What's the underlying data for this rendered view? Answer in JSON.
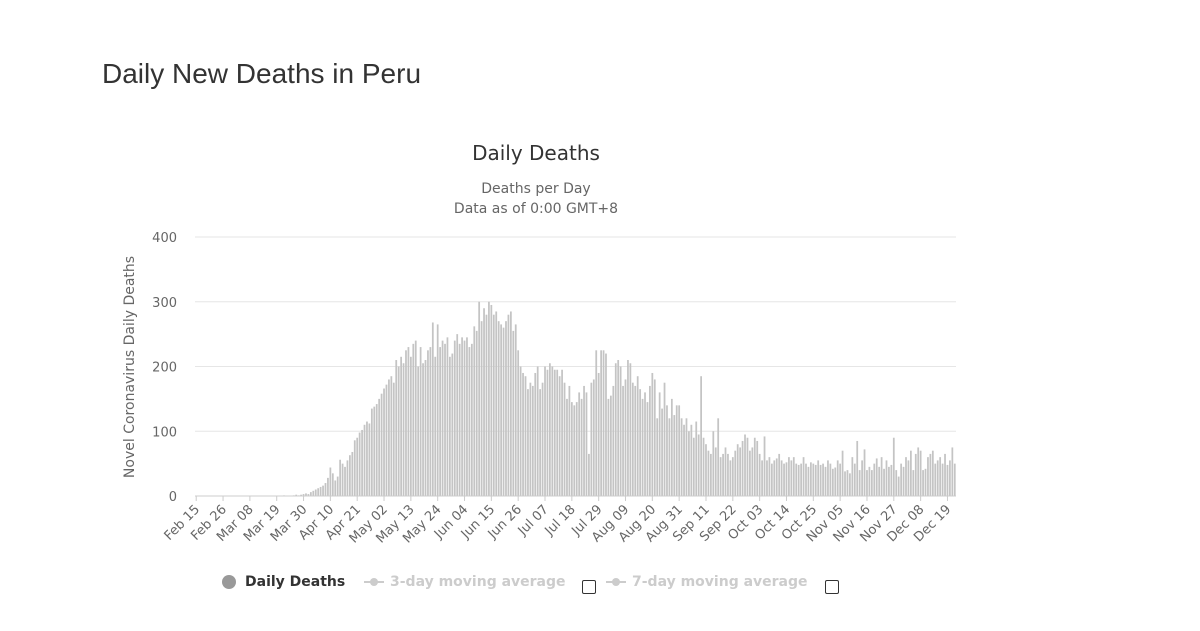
{
  "page": {
    "title": "Daily New Deaths in Peru"
  },
  "legend": {
    "items": [
      {
        "label": "Daily Deaths",
        "active": true
      },
      {
        "label": "3-day moving average",
        "active": false
      },
      {
        "label": "7-day moving average",
        "active": false
      }
    ],
    "checkbox_checked": [
      false,
      false
    ]
  },
  "colors": {
    "bar": "#c4c4c4",
    "bar_stroke": "#ffffff",
    "grid": "#e6e6e6",
    "text": "#666666",
    "title": "#333333"
  },
  "chart_data": {
    "type": "bar",
    "title": "Daily Deaths",
    "subtitle": [
      "Deaths per Day",
      "Data as of 0:00 GMT+8"
    ],
    "ylabel": "Novel Coronavirus Daily Deaths",
    "xlabel": "",
    "ylim": [
      0,
      400
    ],
    "yticks": [
      0,
      100,
      200,
      300,
      400
    ],
    "grid": true,
    "legend_position": "bottom",
    "x_start": "Feb 15",
    "x_tick_labels": [
      "Feb 15",
      "Feb 26",
      "Mar 08",
      "Mar 19",
      "Mar 30",
      "Apr 10",
      "Apr 21",
      "May 02",
      "May 13",
      "May 24",
      "Jun 04",
      "Jun 15",
      "Jun 26",
      "Jul 07",
      "Jul 18",
      "Jul 29",
      "Aug 09",
      "Aug 20",
      "Aug 31",
      "Sep 11",
      "Sep 22",
      "Oct 03",
      "Oct 14",
      "Oct 25",
      "Nov 05",
      "Nov 16",
      "Nov 27",
      "Dec 08",
      "Dec 19"
    ],
    "series": [
      {
        "name": "Daily Deaths",
        "values": [
          0,
          0,
          0,
          0,
          0,
          0,
          0,
          0,
          0,
          0,
          0,
          0,
          0,
          0,
          0,
          0,
          0,
          0,
          0,
          0,
          0,
          0,
          0,
          0,
          0,
          0,
          0,
          0,
          0,
          0,
          0,
          0,
          0,
          0,
          0,
          0,
          1,
          0,
          0,
          0,
          1,
          2,
          1,
          2,
          3,
          4,
          3,
          6,
          8,
          10,
          12,
          14,
          16,
          20,
          28,
          44,
          35,
          24,
          30,
          56,
          50,
          45,
          55,
          63,
          68,
          86,
          90,
          98,
          102,
          110,
          115,
          112,
          135,
          138,
          142,
          150,
          158,
          166,
          172,
          180,
          185,
          175,
          210,
          200,
          215,
          205,
          225,
          230,
          215,
          235,
          240,
          200,
          230,
          205,
          210,
          225,
          230,
          268,
          215,
          265,
          230,
          240,
          235,
          245,
          215,
          220,
          240,
          250,
          235,
          245,
          240,
          245,
          230,
          235,
          262,
          255,
          300,
          270,
          290,
          280,
          300,
          295,
          280,
          285,
          270,
          265,
          260,
          270,
          280,
          285,
          255,
          265,
          225,
          200,
          190,
          185,
          165,
          175,
          170,
          190,
          200,
          165,
          175,
          200,
          195,
          205,
          200,
          195,
          195,
          185,
          195,
          175,
          150,
          170,
          145,
          140,
          145,
          160,
          150,
          170,
          160,
          65,
          175,
          180,
          225,
          190,
          225,
          225,
          220,
          150,
          155,
          170,
          205,
          210,
          200,
          170,
          180,
          210,
          205,
          175,
          170,
          185,
          165,
          150,
          160,
          145,
          170,
          190,
          180,
          120,
          160,
          135,
          175,
          140,
          120,
          150,
          125,
          140,
          140,
          120,
          110,
          120,
          100,
          110,
          90,
          115,
          95,
          185,
          90,
          80,
          70,
          65,
          100,
          75,
          120,
          60,
          65,
          75,
          65,
          55,
          60,
          70,
          80,
          75,
          85,
          95,
          90,
          70,
          75,
          90,
          85,
          65,
          55,
          92,
          55,
          60,
          50,
          55,
          58,
          65,
          55,
          50,
          52,
          60,
          55,
          60,
          50,
          48,
          50,
          60,
          50,
          45,
          52,
          50,
          48,
          55,
          48,
          50,
          45,
          55,
          50,
          42,
          44,
          55,
          50,
          70,
          38,
          40,
          35,
          60,
          50,
          85,
          40,
          55,
          72,
          40,
          45,
          40,
          50,
          58,
          45,
          60,
          42,
          55,
          45,
          48,
          90,
          40,
          30,
          50,
          45,
          60,
          55,
          70,
          40,
          65,
          75,
          70,
          40,
          42,
          60,
          65,
          70,
          50,
          55,
          60,
          50,
          65,
          48,
          55,
          75,
          50
        ]
      }
    ]
  }
}
